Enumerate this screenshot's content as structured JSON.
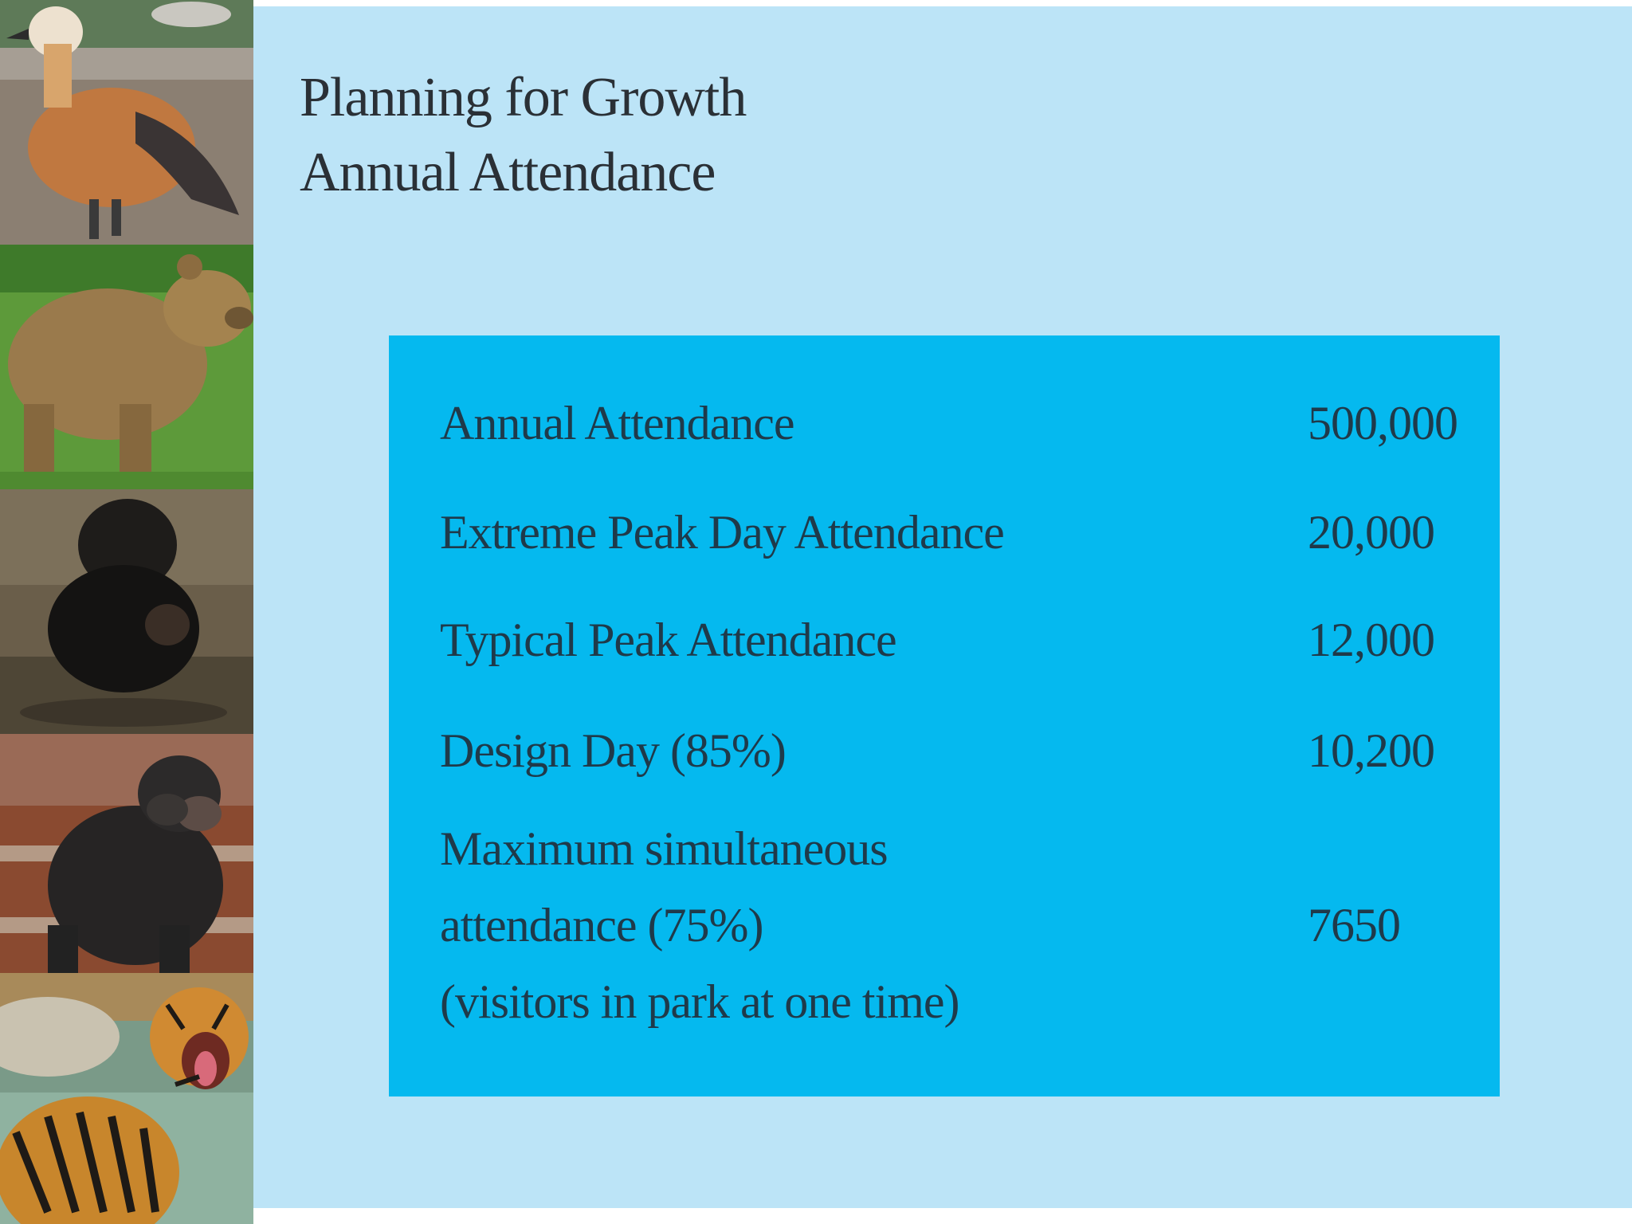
{
  "slide": {
    "title_line1": "Planning for Growth",
    "title_line2": "Annual Attendance"
  },
  "table": {
    "rows": [
      {
        "label": "Annual Attendance",
        "value": "500,000"
      },
      {
        "label": "Extreme Peak Day Attendance",
        "value": "20,000"
      },
      {
        "label": "Typical Peak Attendance",
        "value": "12,000"
      },
      {
        "label": "Design Day (85%)",
        "value": "10,200"
      }
    ],
    "multi_row": {
      "label_line1": "Maximum simultaneous",
      "label_line2": "attendance (75%)",
      "label_line3": "(visitors in park at one time)",
      "value": "7650"
    }
  },
  "photos": [
    "duck-photo",
    "bear-photo",
    "monkey-photo",
    "chimpanzee-photo",
    "tiger-photo"
  ],
  "colors": {
    "slide_background": "#bce4f7",
    "panel_background": "#05b9ef",
    "title_text": "#2a3036",
    "table_text": "#1f3a4a"
  }
}
